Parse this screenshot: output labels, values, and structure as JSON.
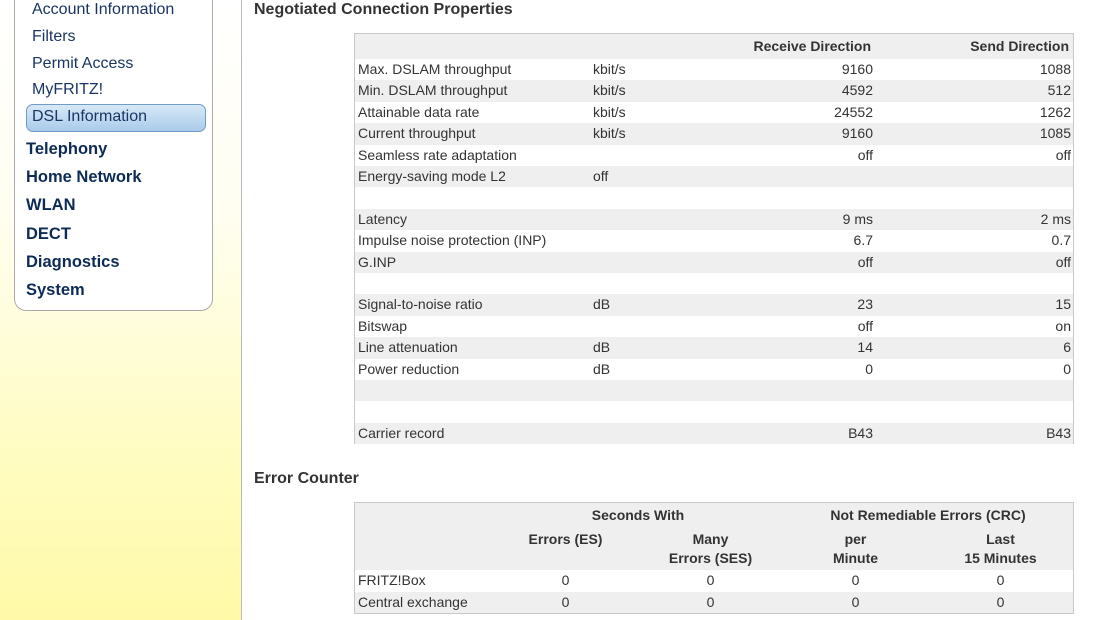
{
  "sidebar": {
    "subitems": [
      {
        "label": "Account Information"
      },
      {
        "label": "Filters"
      },
      {
        "label": "Permit Access"
      },
      {
        "label": "MyFRITZ!"
      },
      {
        "label": "DSL Information",
        "active": true
      }
    ],
    "items": [
      "Telephony",
      "Home Network",
      "WLAN",
      "DECT",
      "Diagnostics",
      "System"
    ]
  },
  "connection": {
    "title": "Negotiated Connection Properties",
    "headers": [
      "Receive Direction",
      "Send Direction"
    ],
    "rows": [
      {
        "label": "Max. DSLAM throughput",
        "unit": "kbit/s",
        "receive": 9160,
        "send": 1088
      },
      {
        "label": "Min. DSLAM throughput",
        "unit": "kbit/s",
        "receive": 4592,
        "send": 512
      },
      {
        "label": "Attainable data rate",
        "unit": "kbit/s",
        "receive": 24552,
        "send": 1262
      },
      {
        "label": "Current throughput",
        "unit": "kbit/s",
        "receive": 9160,
        "send": 1085
      },
      {
        "label": "Seamless rate adaptation",
        "receive": "off",
        "send": "off"
      },
      {
        "label": "Energy-saving mode L2",
        "unit": "off"
      },
      null,
      {
        "label": "Latency",
        "receive": "9 ms",
        "send": "2 ms"
      },
      {
        "label": "Impulse noise protection (INP)",
        "receive": 6.7,
        "send": 0.7
      },
      {
        "label": "G.INP",
        "receive": "off",
        "send": "off"
      },
      null,
      {
        "label": "Signal-to-noise ratio",
        "unit": "dB",
        "receive": 23,
        "send": 15
      },
      {
        "label": "Bitswap",
        "receive": "off",
        "send": "on"
      },
      {
        "label": "Line attenuation",
        "unit": "dB",
        "receive": 14,
        "send": 6
      },
      {
        "label": "Power reduction",
        "unit": "dB",
        "receive": 0,
        "send": 0
      },
      null,
      null,
      {
        "label": "Carrier record",
        "receive": "B43",
        "send": "B43"
      }
    ]
  },
  "errors": {
    "title": "Error Counter",
    "groups": [
      "Seconds With",
      "Not Remediable Errors (CRC)"
    ],
    "columns": [
      [
        "Errors (ES)"
      ],
      [
        "Many",
        "Errors (SES)"
      ],
      [
        "per",
        "Minute"
      ],
      [
        "Last",
        "15 Minutes"
      ]
    ],
    "rows": [
      {
        "label": "FRITZ!Box",
        "values": [
          0,
          0,
          0,
          0
        ]
      },
      {
        "label": "Central exchange",
        "values": [
          0,
          0,
          0,
          0
        ]
      }
    ]
  }
}
